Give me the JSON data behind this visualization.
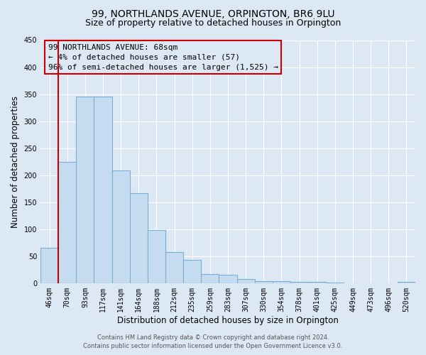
{
  "title": "99, NORTHLANDS AVENUE, ORPINGTON, BR6 9LU",
  "subtitle": "Size of property relative to detached houses in Orpington",
  "xlabel": "Distribution of detached houses by size in Orpington",
  "ylabel": "Number of detached properties",
  "bar_labels": [
    "46sqm",
    "70sqm",
    "93sqm",
    "117sqm",
    "141sqm",
    "164sqm",
    "188sqm",
    "212sqm",
    "235sqm",
    "259sqm",
    "283sqm",
    "307sqm",
    "330sqm",
    "354sqm",
    "378sqm",
    "401sqm",
    "425sqm",
    "449sqm",
    "473sqm",
    "496sqm",
    "520sqm"
  ],
  "bar_heights": [
    65,
    224,
    345,
    345,
    209,
    167,
    98,
    57,
    43,
    17,
    15,
    8,
    4,
    4,
    2,
    2,
    1,
    0,
    0,
    0,
    2
  ],
  "bar_color": "#c5dcf0",
  "bar_edge_color": "#7aafd4",
  "highlight_color": "#cc0000",
  "annotation_title": "99 NORTHLANDS AVENUE: 68sqm",
  "annotation_line1": "← 4% of detached houses are smaller (57)",
  "annotation_line2": "96% of semi-detached houses are larger (1,525) →",
  "ylim": [
    0,
    450
  ],
  "yticks": [
    0,
    50,
    100,
    150,
    200,
    250,
    300,
    350,
    400,
    450
  ],
  "footer_line1": "Contains HM Land Registry data © Crown copyright and database right 2024.",
  "footer_line2": "Contains public sector information licensed under the Open Government Licence v3.0.",
  "bg_color": "#dde8f5",
  "grid_color": "#ffffff",
  "title_fontsize": 10,
  "subtitle_fontsize": 9,
  "axis_label_fontsize": 8.5,
  "tick_fontsize": 7,
  "footer_fontsize": 6,
  "annot_fontsize": 8
}
